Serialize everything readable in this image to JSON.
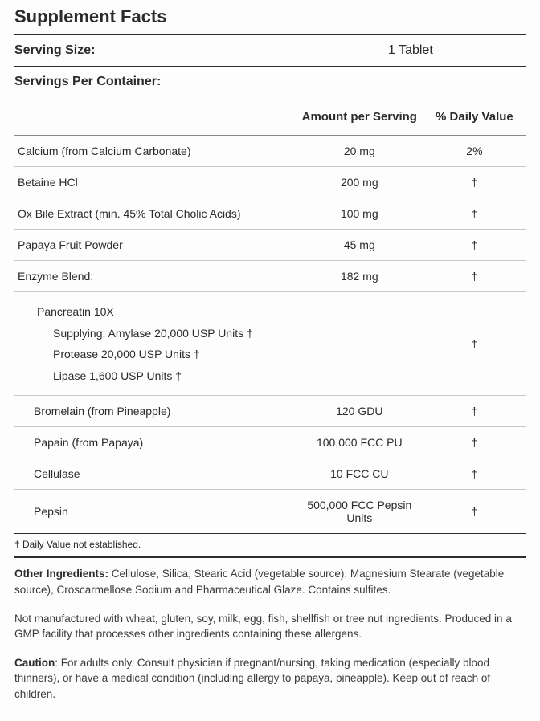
{
  "title": "Supplement Facts",
  "serving": {
    "size_label": "Serving Size:",
    "size_value": "1 Tablet",
    "per_container_label": "Servings Per Container:",
    "per_container_value": ""
  },
  "columns": {
    "name": "",
    "amount": "Amount per Serving",
    "dv": "% Daily Value"
  },
  "rows": [
    {
      "name": "Calcium (from Calcium Carbonate)",
      "amount": "20 mg",
      "dv": "2%",
      "indent": 0
    },
    {
      "name": "Betaine HCl",
      "amount": "200 mg",
      "dv": "†",
      "indent": 0
    },
    {
      "name": "Ox Bile Extract (min. 45% Total Cholic Acids)",
      "amount": "100 mg",
      "dv": "†",
      "indent": 0
    },
    {
      "name": "Papaya Fruit Powder",
      "amount": "45 mg",
      "dv": "†",
      "indent": 0
    },
    {
      "name": "Enzyme Blend:",
      "amount": "182 mg",
      "dv": "†",
      "indent": 0
    },
    {
      "name": "Pancreatin 10X",
      "amount": "",
      "dv": "†",
      "indent": 1,
      "sublines": [
        "Supplying: Amylase 20,000 USP Units †",
        "Protease 20,000 USP Units †",
        "Lipase 1,600 USP Units †"
      ]
    },
    {
      "name": "Bromelain (from Pineapple)",
      "amount": "120 GDU",
      "dv": "†",
      "indent": 1
    },
    {
      "name": "Papain (from Papaya)",
      "amount": "100,000 FCC PU",
      "dv": "†",
      "indent": 1
    },
    {
      "name": "Cellulase",
      "amount": "10 FCC CU",
      "dv": "†",
      "indent": 1
    },
    {
      "name": "Pepsin",
      "amount": "500,000 FCC Pepsin Units",
      "dv": "†",
      "indent": 1
    }
  ],
  "footnote": "† Daily Value not established.",
  "other_ingredients_label": "Other Ingredients:",
  "other_ingredients": "Cellulose, Silica, Stearic Acid (vegetable source), Magnesium Stearate (vegetable source), Croscarmellose Sodium and Pharmaceutical Glaze. Contains sulfites.",
  "allergen": "Not manufactured with wheat, gluten, soy, milk, egg, fish, shellfish or tree nut ingredients. Produced in a GMP facility that processes other ingredients containing these allergens.",
  "caution_label": "Caution",
  "caution": ": For adults only. Consult physician if pregnant/nursing, taking medication (especially blood thinners), or have a medical condition (including allergy to papaya, pineapple). Keep out of reach of children."
}
